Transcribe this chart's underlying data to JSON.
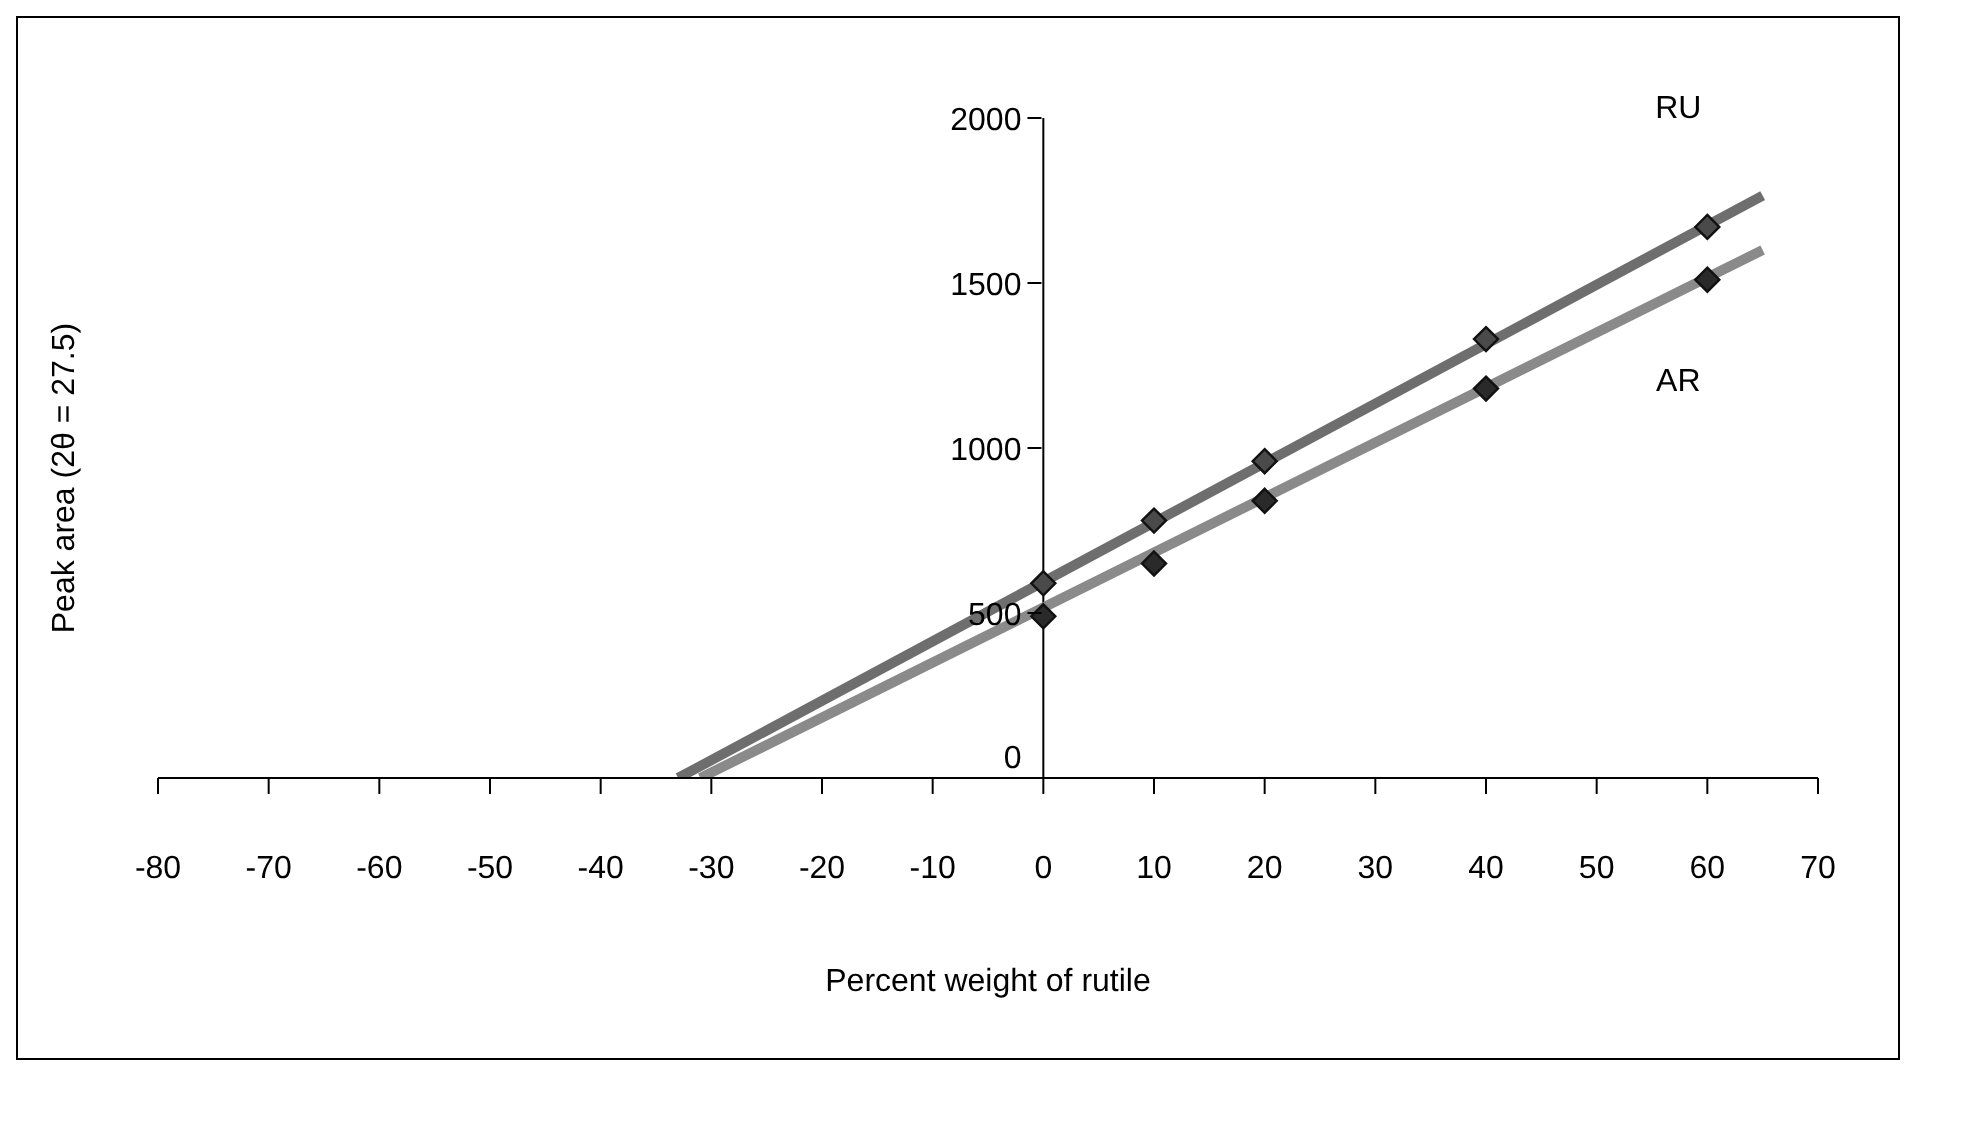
{
  "chart_data": {
    "type": "scatter",
    "xlabel": "Percent weight of rutile",
    "ylabel": "Peak area (2θ = 27.5)",
    "xlim": [
      -80,
      70
    ],
    "xticks": [
      -80,
      -70,
      -60,
      -50,
      -40,
      -30,
      -20,
      -10,
      0,
      10,
      20,
      30,
      40,
      50,
      60,
      70
    ],
    "ylim": [
      0,
      2000
    ],
    "yticks": [
      0,
      500,
      1000,
      1500,
      2000
    ],
    "grid": false,
    "legend": false,
    "series": [
      {
        "name": "RU",
        "color": "#4a4a4a",
        "marker": "diamond",
        "x": [
          0,
          10,
          20,
          40,
          60
        ],
        "values": [
          590,
          780,
          960,
          1330,
          1670
        ]
      },
      {
        "type": "line",
        "color": "#6e6e6e",
        "marker": "none",
        "x": [
          -33,
          65
        ],
        "values": [
          0,
          1765
        ]
      },
      {
        "name": "AR",
        "color": "#2a2a2a",
        "marker": "diamond",
        "x": [
          0,
          10,
          20,
          40,
          60
        ],
        "values": [
          490,
          650,
          840,
          1180,
          1510
        ]
      },
      {
        "type": "line",
        "color": "#8a8a8a",
        "marker": "none",
        "x": [
          -31,
          65
        ],
        "values": [
          0,
          1600
        ]
      }
    ]
  }
}
